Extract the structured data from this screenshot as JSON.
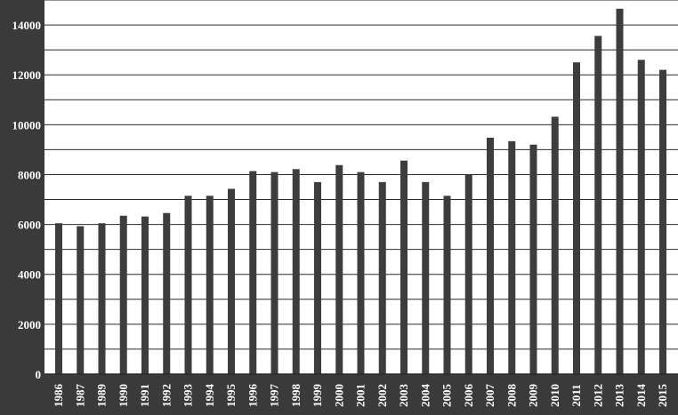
{
  "chart_data": {
    "type": "bar",
    "categories": [
      "1986",
      "1987",
      "1989",
      "1990",
      "1991",
      "1992",
      "1993",
      "1994",
      "1995",
      "1996",
      "1997",
      "1998",
      "1999",
      "2000",
      "2001",
      "2002",
      "2003",
      "2004",
      "2005",
      "2006",
      "2007",
      "2008",
      "2009",
      "2010",
      "2011",
      "2012",
      "2013",
      "2014",
      "2015"
    ],
    "values": [
      6050,
      5930,
      6050,
      6350,
      6320,
      6460,
      7150,
      7150,
      7430,
      8140,
      8100,
      8220,
      7700,
      8380,
      8100,
      7700,
      8560,
      7700,
      7150,
      8000,
      9480,
      9340,
      9200,
      10320,
      12500,
      13560,
      14650,
      12600,
      12200
    ],
    "yticks": [
      "0",
      "2000",
      "4000",
      "6000",
      "8000",
      "10000",
      "12000",
      "14000"
    ],
    "ylim": [
      0,
      15000
    ],
    "grid": true,
    "colors": {
      "bar": "#3d3d3d",
      "background": "#ffffff",
      "frame": "#3a3a3a",
      "grid": "#2a2a2a",
      "tick_label": "#ffffff"
    }
  }
}
